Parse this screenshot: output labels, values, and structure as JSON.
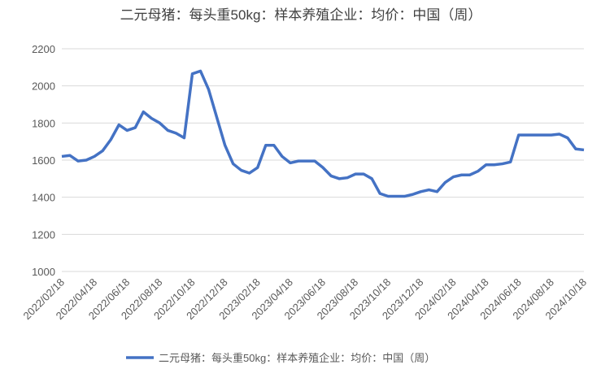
{
  "chart_data": {
    "type": "line",
    "title": "二元母猪：每头重50kg：样本养殖企业：均价：中国（周）",
    "categories": [
      "2022/02/18",
      null,
      null,
      null,
      "2022/04/18",
      null,
      null,
      null,
      "2022/06/18",
      null,
      null,
      null,
      "2022/08/18",
      null,
      null,
      null,
      "2022/10/18",
      null,
      null,
      null,
      "2022/12/18",
      null,
      null,
      null,
      "2023/02/18",
      null,
      null,
      null,
      "2023/04/18",
      null,
      null,
      null,
      "2023/06/18",
      null,
      null,
      null,
      "2023/08/18",
      null,
      null,
      null,
      "2023/10/18",
      null,
      null,
      null,
      "2023/12/18",
      null,
      null,
      null,
      "2024/02/18",
      null,
      null,
      null,
      "2024/04/18",
      null,
      null,
      null,
      "2024/06/18",
      null,
      null,
      null,
      "2024/08/18",
      null,
      null,
      null,
      "2024/10/18"
    ],
    "series": [
      {
        "name": "二元母猪：每头重50kg：样本养殖企业：均价：中国（周）",
        "color": "#4472c4",
        "values": [
          1620,
          1625,
          1595,
          1600,
          1620,
          1650,
          1710,
          1790,
          1760,
          1775,
          1860,
          1825,
          1800,
          1760,
          1745,
          1720,
          2065,
          2080,
          1980,
          1830,
          1680,
          1580,
          1545,
          1530,
          1560,
          1680,
          1680,
          1620,
          1585,
          1595,
          1595,
          1595,
          1560,
          1515,
          1500,
          1505,
          1525,
          1525,
          1500,
          1420,
          1405,
          1405,
          1405,
          1415,
          1430,
          1440,
          1430,
          1480,
          1510,
          1520,
          1520,
          1540,
          1575,
          1575,
          1580,
          1590,
          1735,
          1735,
          1735,
          1735,
          1735,
          1740,
          1720,
          1660,
          1655
        ]
      }
    ],
    "ylim": [
      1000,
      2200
    ],
    "yticks": [
      1000,
      1200,
      1400,
      1600,
      1800,
      2000,
      2200
    ],
    "grid": true,
    "legend": "bottom"
  }
}
